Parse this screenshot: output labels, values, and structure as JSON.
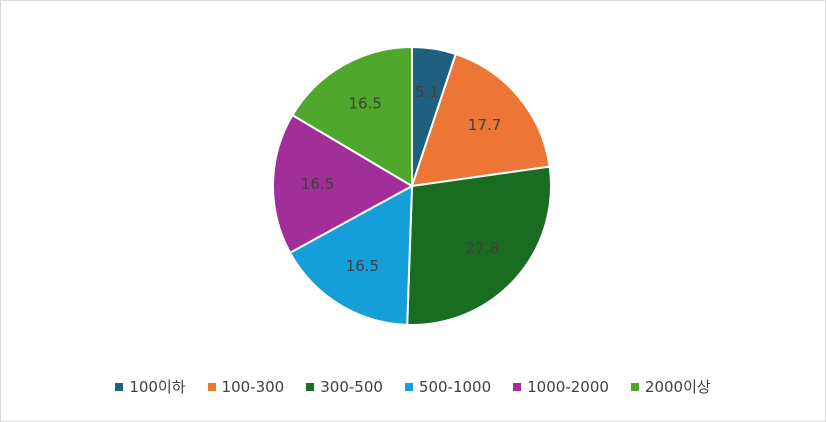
{
  "chart_data": {
    "type": "pie",
    "title": "",
    "categories": [
      "100이하",
      "100-300",
      "300-500",
      "500-1000",
      "1000-2000",
      "2000이상"
    ],
    "values": [
      5.1,
      17.7,
      27.8,
      16.5,
      16.5,
      16.5
    ],
    "data_labels": [
      "5.1",
      "17.7",
      "27.8",
      "16.5",
      "16.5",
      "16.5"
    ],
    "colors": [
      "#1f5f7f",
      "#ed7535",
      "#1a6c23",
      "#149fd8",
      "#a12e99",
      "#4fa72c"
    ],
    "legend_position": "bottom",
    "start_angle_deg": 0,
    "direction": "clockwise"
  }
}
